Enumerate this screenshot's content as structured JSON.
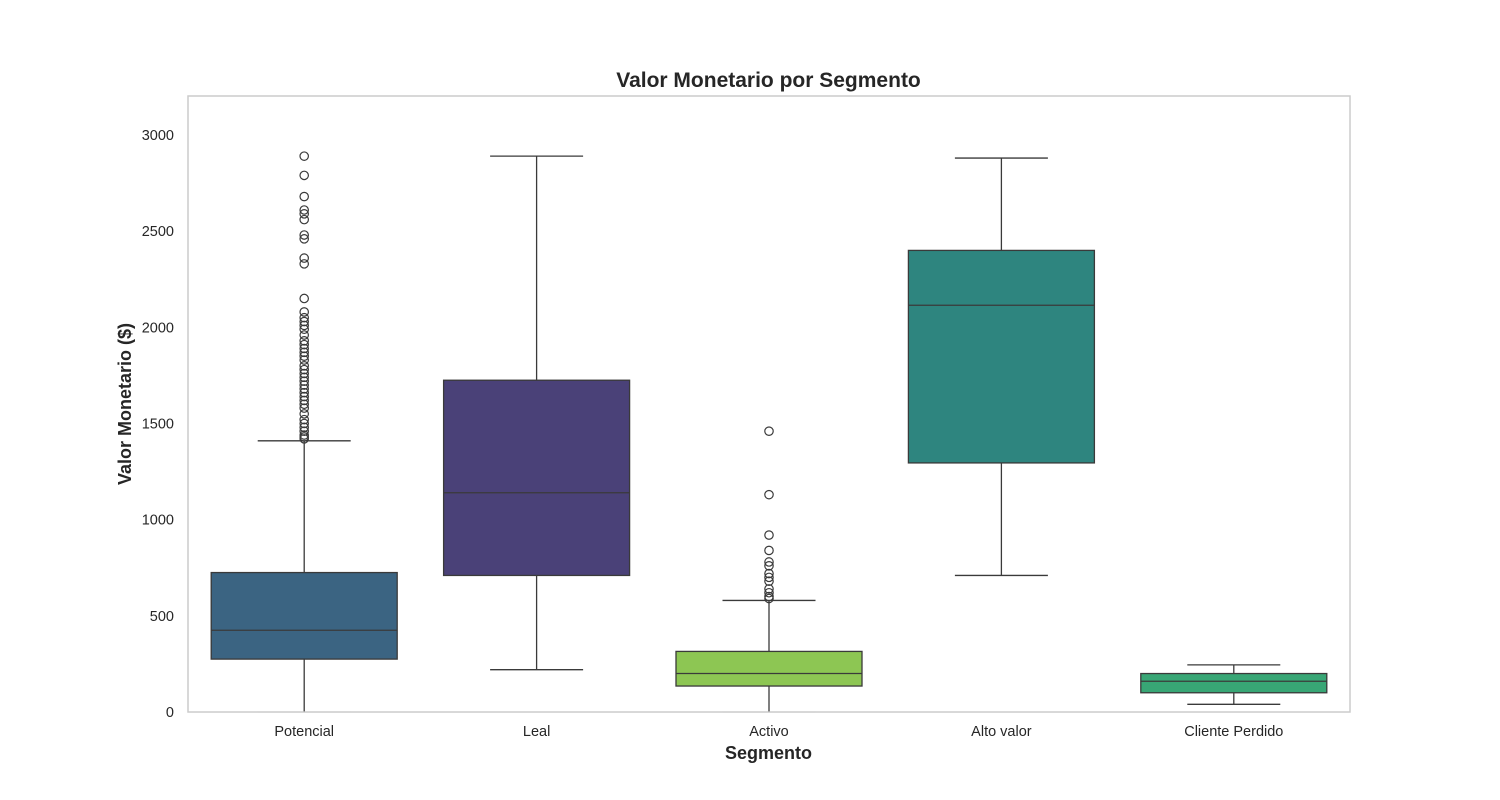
{
  "chart_data": {
    "type": "boxplot",
    "title": "Valor Monetario por Segmento",
    "xlabel": "Segmento",
    "ylabel": "Valor Monetario ($)",
    "ylim": [
      0,
      3200
    ],
    "yticks": [
      0,
      500,
      1000,
      1500,
      2000,
      2500,
      3000
    ],
    "grid": false,
    "categories": [
      "Potencial",
      "Leal",
      "Activo",
      "Alto valor",
      "Cliente Perdido"
    ],
    "boxes": [
      {
        "category": "Potencial",
        "color": "#3b6482",
        "whisker_low": 0,
        "q1": 275,
        "median": 425,
        "q3": 725,
        "whisker_high": 1410,
        "outliers": [
          1420,
          1430,
          1440,
          1460,
          1480,
          1500,
          1520,
          1550,
          1580,
          1600,
          1620,
          1640,
          1660,
          1680,
          1700,
          1720,
          1740,
          1760,
          1780,
          1800,
          1830,
          1850,
          1870,
          1890,
          1910,
          1930,
          1960,
          1990,
          2010,
          2030,
          2050,
          2080,
          2150,
          2330,
          2360,
          2460,
          2480,
          2560,
          2590,
          2610,
          2680,
          2790,
          2890
        ]
      },
      {
        "category": "Leal",
        "color": "#4a4178",
        "whisker_low": 220,
        "q1": 710,
        "median": 1140,
        "q3": 1725,
        "whisker_high": 2890,
        "outliers": []
      },
      {
        "category": "Activo",
        "color": "#8dc653",
        "whisker_low": 0,
        "q1": 135,
        "median": 200,
        "q3": 315,
        "whisker_high": 580,
        "outliers": [
          590,
          600,
          620,
          640,
          680,
          700,
          720,
          760,
          780,
          840,
          920,
          1130,
          1460
        ]
      },
      {
        "category": "Alto valor",
        "color": "#2e857f",
        "whisker_low": 710,
        "q1": 1295,
        "median": 2115,
        "q3": 2400,
        "whisker_high": 2880,
        "outliers": []
      },
      {
        "category": "Cliente Perdido",
        "color": "#38a675",
        "whisker_low": 40,
        "q1": 100,
        "median": 160,
        "q3": 200,
        "whisker_high": 245,
        "outliers": []
      }
    ]
  }
}
